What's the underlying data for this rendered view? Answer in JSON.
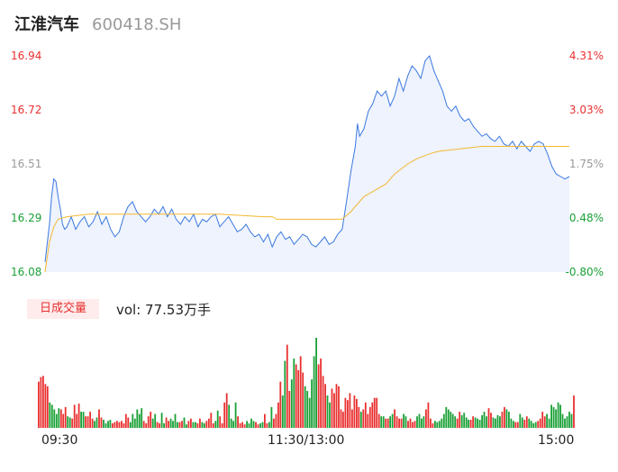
{
  "header": {
    "name": "江淮汽车",
    "code": "600418.SH"
  },
  "colors": {
    "up": "#e93030",
    "down": "#1aa036",
    "flat": "#999999",
    "price_line": "#3a78e0",
    "avg_line": "#f5b731",
    "area_fill": "#eef3fd"
  },
  "chart_data": [
    {
      "type": "line",
      "title": "",
      "x_range": [
        0,
        240
      ],
      "ylim": [
        16.08,
        16.94
      ],
      "y_ticks": [
        "16.94",
        "16.72",
        "16.51",
        "16.29",
        "16.08"
      ],
      "y_ticks_right": [
        "4.31%",
        "3.03%",
        "1.75%",
        "0.48%",
        "-0.80%"
      ],
      "x_ticks": [
        "09:30",
        "11:30/13:00",
        "15:00"
      ],
      "series": [
        {
          "key": "price",
          "points": [
            [
              0,
              16.12
            ],
            [
              2,
              16.27
            ],
            [
              3,
              16.38
            ],
            [
              4,
              16.45
            ],
            [
              5,
              16.44
            ],
            [
              6,
              16.38
            ],
            [
              7,
              16.33
            ],
            [
              8,
              16.27
            ],
            [
              9,
              16.25
            ],
            [
              10,
              16.26
            ],
            [
              12,
              16.3
            ],
            [
              14,
              16.25
            ],
            [
              16,
              16.28
            ],
            [
              18,
              16.3
            ],
            [
              20,
              16.26
            ],
            [
              22,
              16.28
            ],
            [
              24,
              16.32
            ],
            [
              26,
              16.27
            ],
            [
              28,
              16.3
            ],
            [
              30,
              16.25
            ],
            [
              32,
              16.22
            ],
            [
              34,
              16.24
            ],
            [
              36,
              16.3
            ],
            [
              38,
              16.34
            ],
            [
              40,
              16.36
            ],
            [
              42,
              16.32
            ],
            [
              44,
              16.3
            ],
            [
              46,
              16.28
            ],
            [
              48,
              16.3
            ],
            [
              50,
              16.33
            ],
            [
              52,
              16.31
            ],
            [
              54,
              16.34
            ],
            [
              56,
              16.3
            ],
            [
              58,
              16.33
            ],
            [
              60,
              16.29
            ],
            [
              62,
              16.27
            ],
            [
              64,
              16.3
            ],
            [
              66,
              16.28
            ],
            [
              68,
              16.31
            ],
            [
              70,
              16.26
            ],
            [
              72,
              16.29
            ],
            [
              74,
              16.28
            ],
            [
              76,
              16.3
            ],
            [
              78,
              16.31
            ],
            [
              80,
              16.26
            ],
            [
              82,
              16.28
            ],
            [
              84,
              16.3
            ],
            [
              86,
              16.27
            ],
            [
              88,
              16.24
            ],
            [
              90,
              16.25
            ],
            [
              92,
              16.27
            ],
            [
              94,
              16.24
            ],
            [
              96,
              16.22
            ],
            [
              98,
              16.23
            ],
            [
              100,
              16.2
            ],
            [
              102,
              16.23
            ],
            [
              104,
              16.18
            ],
            [
              106,
              16.22
            ],
            [
              108,
              16.24
            ],
            [
              110,
              16.21
            ],
            [
              112,
              16.22
            ],
            [
              114,
              16.19
            ],
            [
              116,
              16.21
            ],
            [
              118,
              16.23
            ],
            [
              120,
              16.22
            ],
            [
              122,
              16.19
            ],
            [
              124,
              16.18
            ],
            [
              126,
              16.2
            ],
            [
              128,
              16.22
            ],
            [
              130,
              16.19
            ],
            [
              132,
              16.2
            ],
            [
              134,
              16.23
            ],
            [
              136,
              16.25
            ],
            [
              138,
              16.36
            ],
            [
              140,
              16.48
            ],
            [
              142,
              16.58
            ],
            [
              143,
              16.67
            ],
            [
              144,
              16.62
            ],
            [
              146,
              16.65
            ],
            [
              148,
              16.72
            ],
            [
              150,
              16.75
            ],
            [
              152,
              16.8
            ],
            [
              154,
              16.78
            ],
            [
              156,
              16.8
            ],
            [
              158,
              16.74
            ],
            [
              160,
              16.78
            ],
            [
              162,
              16.85
            ],
            [
              164,
              16.8
            ],
            [
              166,
              16.86
            ],
            [
              168,
              16.9
            ],
            [
              170,
              16.88
            ],
            [
              172,
              16.85
            ],
            [
              174,
              16.92
            ],
            [
              176,
              16.94
            ],
            [
              178,
              16.88
            ],
            [
              180,
              16.84
            ],
            [
              182,
              16.8
            ],
            [
              184,
              16.74
            ],
            [
              186,
              16.72
            ],
            [
              188,
              16.74
            ],
            [
              190,
              16.7
            ],
            [
              192,
              16.68
            ],
            [
              194,
              16.69
            ],
            [
              196,
              16.66
            ],
            [
              198,
              16.64
            ],
            [
              200,
              16.62
            ],
            [
              202,
              16.63
            ],
            [
              204,
              16.61
            ],
            [
              206,
              16.6
            ],
            [
              208,
              16.62
            ],
            [
              210,
              16.59
            ],
            [
              212,
              16.58
            ],
            [
              214,
              16.6
            ],
            [
              216,
              16.57
            ],
            [
              218,
              16.6
            ],
            [
              220,
              16.58
            ],
            [
              222,
              16.56
            ],
            [
              224,
              16.59
            ],
            [
              226,
              16.6
            ],
            [
              228,
              16.59
            ],
            [
              230,
              16.55
            ],
            [
              232,
              16.5
            ],
            [
              234,
              16.47
            ],
            [
              236,
              16.46
            ],
            [
              238,
              16.45
            ],
            [
              240,
              16.46
            ]
          ]
        },
        {
          "key": "average",
          "points": [
            [
              0,
              16.08
            ],
            [
              2,
              16.2
            ],
            [
              4,
              16.26
            ],
            [
              6,
              16.29
            ],
            [
              10,
              16.3
            ],
            [
              20,
              16.31
            ],
            [
              40,
              16.31
            ],
            [
              60,
              16.31
            ],
            [
              80,
              16.31
            ],
            [
              100,
              16.3
            ],
            [
              104,
              16.3
            ],
            [
              106,
              16.29
            ],
            [
              116,
              16.29
            ],
            [
              120,
              16.29
            ],
            [
              130,
              16.29
            ],
            [
              136,
              16.29
            ],
            [
              140,
              16.32
            ],
            [
              146,
              16.38
            ],
            [
              150,
              16.4
            ],
            [
              156,
              16.43
            ],
            [
              160,
              16.47
            ],
            [
              166,
              16.51
            ],
            [
              170,
              16.53
            ],
            [
              176,
              16.55
            ],
            [
              180,
              16.56
            ],
            [
              190,
              16.57
            ],
            [
              200,
              16.58
            ],
            [
              210,
              16.58
            ],
            [
              220,
              16.58
            ],
            [
              230,
              16.58
            ],
            [
              240,
              16.58
            ]
          ]
        }
      ]
    },
    {
      "type": "bar",
      "title": "vol: 77.53万手",
      "volume_label": "日成交量",
      "volume_value": "vol: 77.53万手",
      "volumes": [
        40,
        44,
        45,
        38,
        36,
        22,
        20,
        16,
        12,
        17,
        16,
        12,
        18,
        10,
        9,
        8,
        20,
        12,
        21,
        14,
        14,
        10,
        10,
        14,
        8,
        6,
        9,
        16,
        9,
        7,
        4,
        6,
        7,
        4,
        5,
        6,
        5,
        6,
        4,
        12,
        9,
        5,
        12,
        8,
        16,
        12,
        17,
        6,
        4,
        10,
        14,
        8,
        12,
        5,
        4,
        13,
        4,
        9,
        6,
        8,
        6,
        12,
        5,
        5,
        6,
        9,
        3,
        6,
        8,
        5,
        5,
        4,
        8,
        5,
        4,
        6,
        8,
        13,
        4,
        6,
        15,
        10,
        4,
        22,
        30,
        20,
        8,
        6,
        22,
        10,
        4,
        5,
        3,
        6,
        4,
        8,
        6,
        5,
        3,
        4,
        5,
        12,
        4,
        5,
        18,
        8,
        12,
        22,
        40,
        28,
        58,
        72,
        32,
        42,
        60,
        55,
        50,
        62,
        48,
        36,
        32,
        26,
        42,
        62,
        78,
        55,
        60,
        45,
        38,
        28,
        22,
        34,
        30,
        38,
        36,
        16,
        14,
        26,
        24,
        30,
        16,
        28,
        25,
        18,
        14,
        16,
        22,
        12,
        18,
        22,
        26,
        26,
        12,
        10,
        10,
        8,
        8,
        10,
        12,
        16,
        10,
        8,
        8,
        12,
        10,
        6,
        8,
        5,
        6,
        10,
        12,
        8,
        10,
        16,
        22,
        8,
        4,
        6,
        5,
        6,
        8,
        12,
        18,
        16,
        14,
        12,
        10,
        8,
        14,
        11,
        13,
        9,
        7,
        7,
        10,
        9,
        8,
        7,
        11,
        14,
        10,
        17,
        13,
        9,
        8,
        11,
        10,
        14,
        18,
        16,
        14,
        8,
        6,
        5,
        5,
        12,
        9,
        7,
        10,
        8,
        6,
        4,
        5,
        6,
        8,
        14,
        10,
        12,
        8,
        20,
        18,
        16,
        22,
        20,
        12,
        8,
        10,
        14,
        12,
        28
      ]
    }
  ]
}
